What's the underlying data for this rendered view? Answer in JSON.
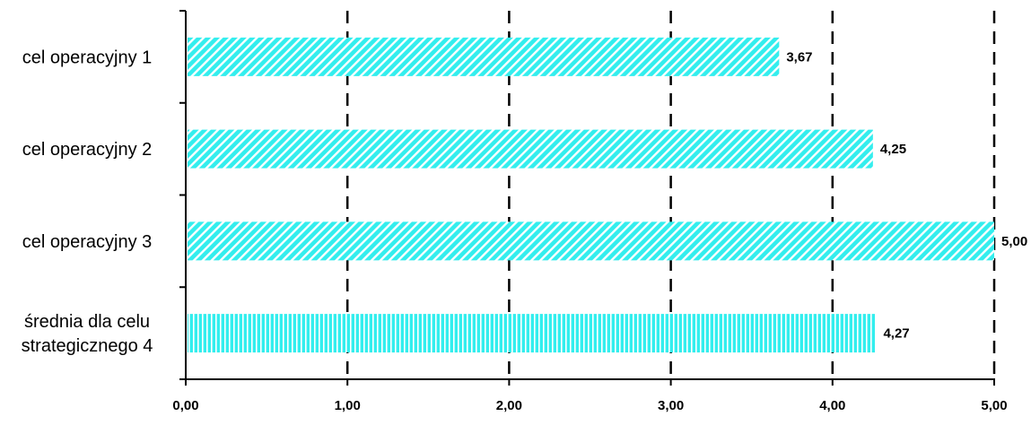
{
  "chart_data": {
    "type": "bar",
    "orientation": "horizontal",
    "categories": [
      [
        "cel operacyjny 1"
      ],
      [
        "cel operacyjny 2"
      ],
      [
        "cel operacyjny 3"
      ],
      [
        "średnia dla celu",
        "strategicznego 4"
      ]
    ],
    "values": [
      3.67,
      4.25,
      5.0,
      4.27
    ],
    "value_labels": [
      "3,67",
      "4,25",
      "5,00",
      "4,27"
    ],
    "bar_patterns": [
      "diagonal",
      "diagonal",
      "diagonal",
      "vertical"
    ],
    "x_ticks": [
      0,
      1,
      2,
      3,
      4,
      5
    ],
    "x_tick_labels": [
      "0,00",
      "1,00",
      "2,00",
      "3,00",
      "4,00",
      "5,00"
    ],
    "xlim": [
      0,
      5
    ],
    "grid": "vertical-dashed",
    "legend": "none",
    "title": "",
    "xlabel": "",
    "ylabel": "",
    "colors": {
      "bar_fill": "#33eeee",
      "bar_stripe": "#ffffff",
      "axis": "#000000",
      "grid": "#000000"
    }
  }
}
